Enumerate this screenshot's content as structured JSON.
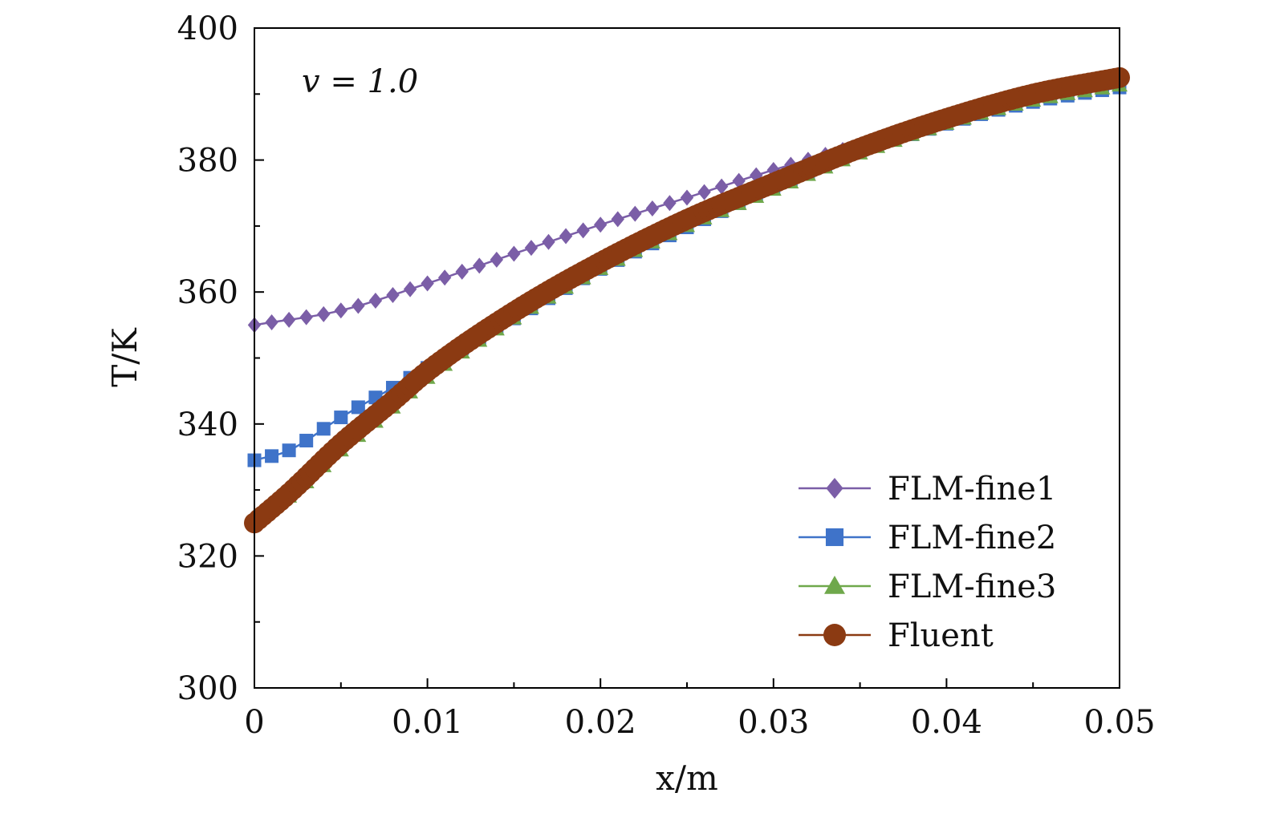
{
  "chart_data": {
    "type": "line",
    "title": "",
    "xlabel": "x/m",
    "ylabel": "T/K",
    "xlim": [
      0,
      0.05
    ],
    "ylim": [
      300,
      400
    ],
    "x_ticks": [
      0,
      0.01,
      0.02,
      0.03,
      0.04,
      0.05
    ],
    "x_tick_labels": [
      "0",
      "0.01",
      "0.02",
      "0.03",
      "0.04",
      "0.05"
    ],
    "y_ticks": [
      300,
      320,
      340,
      360,
      380,
      400
    ],
    "y_tick_labels": [
      "300",
      "320",
      "340",
      "360",
      "380",
      "400"
    ],
    "grid": false,
    "legend_position": "bottom-right",
    "annotation": "v = 1.0",
    "series": [
      {
        "name": "FLM-fine1",
        "color": "#7b5ea7",
        "marker": "diamond",
        "x": [
          0,
          0.005,
          0.01,
          0.015,
          0.02,
          0.025,
          0.03,
          0.035,
          0.04,
          0.045,
          0.05
        ],
        "y": [
          355,
          357.2,
          361.3,
          365.8,
          370.2,
          374.3,
          378.5,
          382.3,
          386.3,
          389.2,
          391.5
        ]
      },
      {
        "name": "FLM-fine2",
        "color": "#3f73c9",
        "marker": "square",
        "x": [
          0,
          0.002,
          0.005,
          0.008,
          0.01,
          0.015,
          0.02,
          0.025,
          0.03,
          0.035,
          0.04,
          0.045,
          0.05
        ],
        "y": [
          334.5,
          336,
          341,
          345.5,
          348.5,
          356,
          363.5,
          369.8,
          375.8,
          381.2,
          385.5,
          388.8,
          391
        ]
      },
      {
        "name": "FLM-fine3",
        "color": "#6fa84b",
        "marker": "triangle",
        "x": [
          0,
          0.002,
          0.005,
          0.008,
          0.01,
          0.015,
          0.02,
          0.025,
          0.03,
          0.035,
          0.04,
          0.045,
          0.05
        ],
        "y": [
          326,
          329,
          336,
          342.5,
          347,
          356,
          363.5,
          370,
          375.5,
          381,
          385.5,
          389,
          391.3
        ]
      },
      {
        "name": "Fluent",
        "color": "#8b3a12",
        "marker": "circle",
        "x": [
          0,
          0.002,
          0.005,
          0.008,
          0.01,
          0.015,
          0.02,
          0.025,
          0.03,
          0.035,
          0.04,
          0.045,
          0.05
        ],
        "y": [
          325,
          329.5,
          337,
          343.5,
          348,
          357,
          364.5,
          371,
          376.5,
          381.8,
          386.3,
          390,
          392.5
        ]
      }
    ]
  }
}
